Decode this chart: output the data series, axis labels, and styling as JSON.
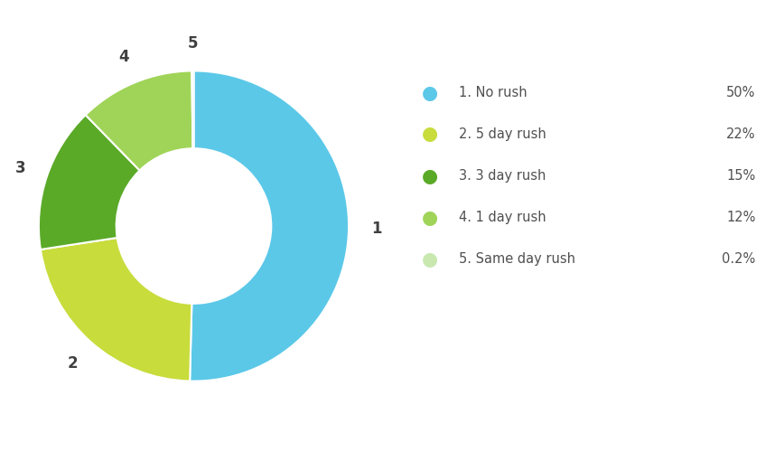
{
  "labels": [
    "1. No rush",
    "2. 5 day rush",
    "3. 3 day rush",
    "4. 1 day rush",
    "5. Same day rush"
  ],
  "values": [
    50,
    22,
    15,
    12,
    0.2
  ],
  "colors": [
    "#5bc8e8",
    "#c8dc3c",
    "#5aaa28",
    "#a0d458",
    "#c8e8b0"
  ],
  "slice_labels": [
    "1",
    "2",
    "3",
    "4",
    "5"
  ],
  "percentages": [
    "50%",
    "22%",
    "15%",
    "12%",
    "0.2%"
  ],
  "background_color": "#ffffff",
  "label_fontsize": 12,
  "legend_fontsize": 10.5,
  "pct_fontsize": 10.5
}
